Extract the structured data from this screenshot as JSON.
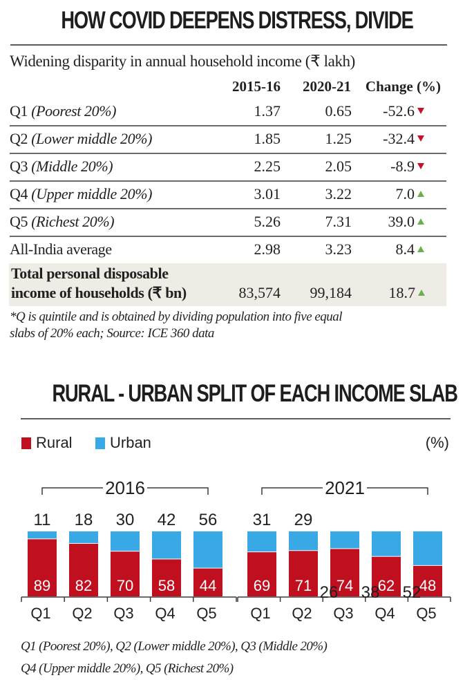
{
  "headline": "HOW COVID DEEPENS DISTRESS, DIVIDE",
  "table": {
    "subtitle": "Widening disparity in annual household income (₹ lakh)",
    "columns": [
      "2015-16",
      "2020-21",
      "Change (%)"
    ],
    "rows": [
      {
        "label": "Q1",
        "label_detail": "(Poorest 20%)",
        "v2015": "1.37",
        "v2020": "0.65",
        "change": "-52.6",
        "direction": "down"
      },
      {
        "label": "Q2",
        "label_detail": "(Lower middle 20%)",
        "v2015": "1.85",
        "v2020": "1.25",
        "change": "-32.4",
        "direction": "down"
      },
      {
        "label": "Q3",
        "label_detail": "(Middle 20%)",
        "v2015": "2.25",
        "v2020": "2.05",
        "change": "-8.9",
        "direction": "down"
      },
      {
        "label": "Q4",
        "label_detail": "(Upper middle 20%)",
        "v2015": "3.01",
        "v2020": "3.22",
        "change": "7.0",
        "direction": "up"
      },
      {
        "label": "Q5",
        "label_detail": "(Richest 20%)",
        "v2015": "5.26",
        "v2020": "7.31",
        "change": "39.0",
        "direction": "up"
      },
      {
        "label": "All-India average",
        "label_detail": "",
        "v2015": "2.98",
        "v2020": "3.23",
        "change": "8.4",
        "direction": "up"
      }
    ],
    "total_row": {
      "label_line1": "Total personal disposable",
      "label_line2": "income of households (₹ bn)",
      "v2015": "83,574",
      "v2020": "99,184",
      "change": "18.7",
      "direction": "up"
    },
    "footnote_line1": "*Q is quintile and is obtained by dividing population into five equal",
    "footnote_line2": "slabs of 20% each; Source: ICE 360 data"
  },
  "chart_title": "RURAL - URBAN SPLIT OF EACH INCOME SLAB",
  "colors": {
    "rural": "#c0101f",
    "urban": "#39a9e6",
    "up": "#6ab04c",
    "down": "#c8102e"
  },
  "chart_data": {
    "type": "bar",
    "stacked": true,
    "title": "RURAL - URBAN SPLIT OF EACH INCOME SLAB",
    "unit_label": "(%)",
    "legend": [
      "Rural",
      "Urban"
    ],
    "legend_position": "top-left",
    "ylim": [
      0,
      100
    ],
    "groups": [
      {
        "name": "2016",
        "categories": [
          "Q1",
          "Q2",
          "Q3",
          "Q4",
          "Q5"
        ],
        "series": [
          {
            "name": "Rural",
            "values": [
              89,
              82,
              70,
              58,
              44
            ]
          },
          {
            "name": "Urban",
            "values": [
              11,
              18,
              30,
              42,
              56
            ]
          }
        ]
      },
      {
        "name": "2021",
        "categories": [
          "Q1",
          "Q2",
          "Q3",
          "Q4",
          "Q5"
        ],
        "series": [
          {
            "name": "Rural",
            "values": [
              69,
              71,
              74,
              62,
              48
            ]
          },
          {
            "name": "Urban",
            "values": [
              31,
              29,
              26,
              38,
              52
            ]
          }
        ]
      }
    ],
    "notes": [
      "Q1 (Poorest 20%), Q2 (Lower middle 20%), Q3 (Middle 20%)",
      "Q4 (Upper middle 20%), Q5 (Richest 20%)"
    ]
  }
}
